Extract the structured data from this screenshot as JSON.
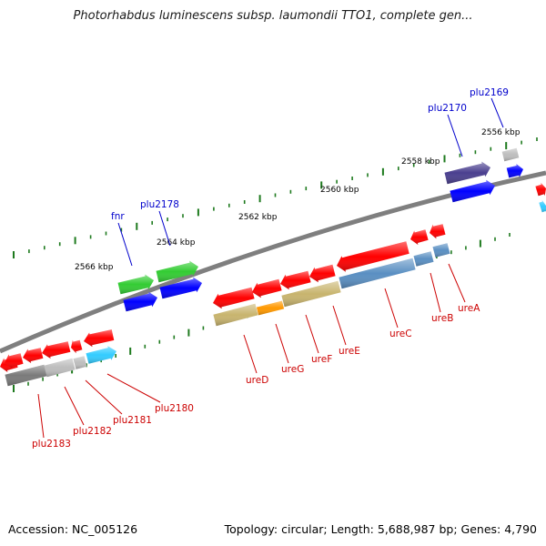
{
  "title": "Photorhabdus luminescens subsp. laumondii TTO1, complete gen...",
  "footer": {
    "accession": "Accession: NC_005126",
    "stats": "Topology: circular; Length: 5,688,987 bp; Genes: 4,790"
  },
  "colors": {
    "backbone": "#7f7f7f",
    "ticks": "#1e7a1e",
    "tick_label": "#000000",
    "gene_label_blue": "#0000cc",
    "gene_label_red": "#cc0000",
    "cds_red": "#ff0000",
    "cds_olive": "#c8b46e",
    "cds_orange": "#ff9900",
    "cds_steelblue": "#5a8fc2",
    "cds_grey": "#7a7a7a",
    "cds_lightgrey": "#bdbdbd",
    "cds_cyan": "#33ccff",
    "cds_green": "#33cc33",
    "cds_blue": "#0000ff",
    "cds_purple": "#4a3f8f"
  },
  "ticks": [
    "2556 kbp",
    "2558 kbp",
    "2560 kbp",
    "2562 kbp",
    "2564 kbp",
    "2566 kbp"
  ],
  "genes_top": [
    "plu2169",
    "plu2170",
    "plu2178",
    "fnr"
  ],
  "genes_bottom": [
    "ureA",
    "ureB",
    "ureC",
    "ureE",
    "ureF",
    "ureG",
    "ureD",
    "plu2180",
    "plu2181",
    "plu2182",
    "plu2183"
  ]
}
